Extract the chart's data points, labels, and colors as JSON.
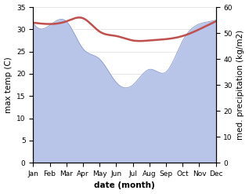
{
  "months": [
    "Jan",
    "Feb",
    "Mar",
    "Apr",
    "May",
    "Jun",
    "Jul",
    "Aug",
    "Sep",
    "Oct",
    "Nov",
    "Dec"
  ],
  "month_indices": [
    0,
    1,
    2,
    3,
    4,
    5,
    6,
    7,
    8,
    9,
    10,
    11
  ],
  "temperature": [
    31.5,
    31.2,
    31.8,
    32.5,
    29.5,
    28.5,
    27.5,
    27.5,
    27.8,
    28.5,
    30.0,
    31.8
  ],
  "precipitation_mm": [
    54.0,
    53.0,
    54.5,
    44.0,
    40.0,
    31.0,
    30.0,
    36.0,
    35.0,
    47.0,
    53.5,
    55.0
  ],
  "temp_color": "#c0504d",
  "precip_fill_color": "#b8c4e8",
  "precip_line_color": "#8899cc",
  "temp_ylim": [
    0,
    35
  ],
  "precip_ylim": [
    0,
    60
  ],
  "temp_yticks": [
    0,
    5,
    10,
    15,
    20,
    25,
    30,
    35
  ],
  "precip_yticks": [
    0,
    10,
    20,
    30,
    40,
    50,
    60
  ],
  "xlabel": "date (month)",
  "ylabel_left": "max temp (C)",
  "ylabel_right": "med. precipitation (kg/m2)",
  "background_color": "#ffffff",
  "label_fontsize": 7.5,
  "tick_fontsize": 6.5
}
